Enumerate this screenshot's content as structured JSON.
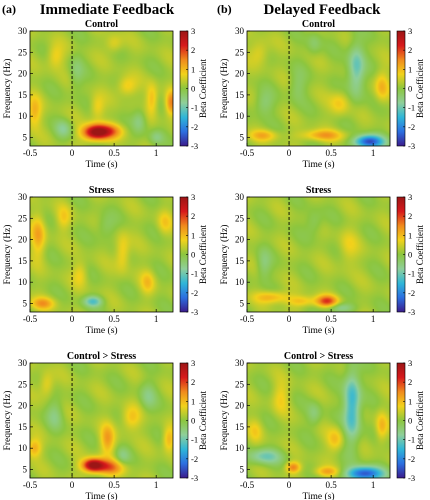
{
  "figure": {
    "panel_a_label": "(a)",
    "panel_b_label": "(b)",
    "column_a_title": "Immediate Feedback",
    "column_b_title": "Delayed Feedback"
  },
  "colorscale": {
    "label": "Beta Coefficient",
    "range": [
      -3,
      3
    ],
    "ticks": [
      "3",
      "2",
      "1",
      "0",
      "-1",
      "-2",
      "-3"
    ],
    "stops": [
      "#3b1c8c",
      "#2c6fe0",
      "#2fb6d8",
      "#8fcf9a",
      "#8cc63f",
      "#f2d21b",
      "#f08a1d",
      "#d7191c",
      "#9b1616"
    ]
  },
  "axes": {
    "xlabel": "Time (s)",
    "ylabel": "Frequency (Hz)",
    "xlim": [
      -0.5,
      1.2
    ],
    "ylim": [
      3,
      30
    ],
    "x_ticks": [
      -0.5,
      0,
      0.5,
      1
    ],
    "x_tick_labels": [
      "-0.5",
      "0",
      "0.5",
      "1"
    ],
    "y_ticks": [
      5,
      10,
      15,
      20,
      25,
      30
    ],
    "y_tick_labels": [
      "5",
      "10",
      "15",
      "20",
      "25",
      "30"
    ],
    "event_line_x": 0
  },
  "chart_data": [
    {
      "type": "heatmap",
      "panel": "a",
      "title": "Control",
      "xlabel": "Time (s)",
      "ylabel": "Frequency (Hz)",
      "xlim": [
        -0.5,
        1.2
      ],
      "ylim": [
        3,
        30
      ],
      "zlim": [
        -3,
        3
      ],
      "blobs": [
        {
          "x": 0.28,
          "y": 6.2,
          "sx": 0.11,
          "sy": 1.3,
          "v": 2.8
        },
        {
          "x": 0.45,
          "y": 6.5,
          "sx": 0.12,
          "sy": 1.2,
          "v": 1.2
        },
        {
          "x": 1.18,
          "y": 13,
          "sx": 0.05,
          "sy": 2.0,
          "v": 1.4
        },
        {
          "x": 0.95,
          "y": 14,
          "sx": 0.05,
          "sy": 2.5,
          "v": 0.9
        },
        {
          "x": -0.45,
          "y": 11,
          "sx": 0.06,
          "sy": 2.5,
          "v": 0.9
        },
        {
          "x": 0.65,
          "y": 17,
          "sx": 0.08,
          "sy": 1.6,
          "v": 0.8
        },
        {
          "x": 0.3,
          "y": 12,
          "sx": 0.06,
          "sy": 2.0,
          "v": 0.7
        },
        {
          "x": -0.2,
          "y": 24,
          "sx": 0.07,
          "sy": 2.0,
          "v": 0.7
        },
        {
          "x": 0.5,
          "y": 27,
          "sx": 0.07,
          "sy": 1.5,
          "v": 0.6
        },
        {
          "x": 0.8,
          "y": 9,
          "sx": 0.06,
          "sy": 2.0,
          "v": -0.7
        },
        {
          "x": -0.1,
          "y": 7,
          "sx": 0.07,
          "sy": 1.5,
          "v": -0.7
        },
        {
          "x": 0.05,
          "y": 20,
          "sx": 0.06,
          "sy": 3.0,
          "v": -0.5
        },
        {
          "x": 1.0,
          "y": 5,
          "sx": 0.06,
          "sy": 1.2,
          "v": -0.6
        }
      ]
    },
    {
      "type": "heatmap",
      "panel": "b",
      "title": "Control",
      "xlabel": "Time (s)",
      "ylabel": "Frequency (Hz)",
      "xlim": [
        -0.5,
        1.2
      ],
      "ylim": [
        3,
        30
      ],
      "zlim": [
        -3,
        3
      ],
      "blobs": [
        {
          "x": 0.95,
          "y": 4.0,
          "sx": 0.12,
          "sy": 1.1,
          "v": -2.8
        },
        {
          "x": 0.4,
          "y": 5.5,
          "sx": 0.18,
          "sy": 0.9,
          "v": 1.1
        },
        {
          "x": -0.3,
          "y": 5.5,
          "sx": 0.12,
          "sy": 0.9,
          "v": 0.9
        },
        {
          "x": 0.8,
          "y": 21,
          "sx": 0.07,
          "sy": 4.5,
          "v": -1.3
        },
        {
          "x": 1.1,
          "y": 17,
          "sx": 0.06,
          "sy": 2.5,
          "v": 0.9
        },
        {
          "x": 0.6,
          "y": 13,
          "sx": 0.08,
          "sy": 2.0,
          "v": 0.7
        },
        {
          "x": 0.1,
          "y": 17,
          "sx": 0.07,
          "sy": 2.5,
          "v": -0.5
        },
        {
          "x": -0.35,
          "y": 25,
          "sx": 0.08,
          "sy": 2.0,
          "v": 0.6
        },
        {
          "x": -0.3,
          "y": 13,
          "sx": 0.08,
          "sy": 2.0,
          "v": -0.6
        },
        {
          "x": 0.3,
          "y": 27,
          "sx": 0.06,
          "sy": 2.0,
          "v": -0.5
        }
      ]
    },
    {
      "type": "heatmap",
      "panel": "a",
      "title": "Stress",
      "xlabel": "Time (s)",
      "ylabel": "Frequency (Hz)",
      "xlim": [
        -0.5,
        1.2
      ],
      "ylim": [
        3,
        30
      ],
      "zlim": [
        -3,
        3
      ],
      "blobs": [
        {
          "x": 0.25,
          "y": 5.5,
          "sx": 0.08,
          "sy": 0.9,
          "v": -1.3
        },
        {
          "x": -0.35,
          "y": 5.0,
          "sx": 0.1,
          "sy": 1.0,
          "v": 1.1
        },
        {
          "x": -0.4,
          "y": 21,
          "sx": 0.06,
          "sy": 3.5,
          "v": 1.0
        },
        {
          "x": 0.6,
          "y": 17,
          "sx": 0.06,
          "sy": 3.0,
          "v": 0.8
        },
        {
          "x": 0.1,
          "y": 12,
          "sx": 0.06,
          "sy": 2.0,
          "v": 0.6
        },
        {
          "x": 0.9,
          "y": 10,
          "sx": 0.06,
          "sy": 2.0,
          "v": 0.7
        },
        {
          "x": 0.4,
          "y": 23,
          "sx": 0.08,
          "sy": 2.0,
          "v": -0.5
        },
        {
          "x": -0.1,
          "y": 25,
          "sx": 0.06,
          "sy": 2.0,
          "v": 0.6
        },
        {
          "x": 1.1,
          "y": 24,
          "sx": 0.06,
          "sy": 2.0,
          "v": 0.6
        }
      ]
    },
    {
      "type": "heatmap",
      "panel": "b",
      "title": "Stress",
      "xlabel": "Time (s)",
      "ylabel": "Frequency (Hz)",
      "xlim": [
        -0.5,
        1.2
      ],
      "ylim": [
        3,
        30
      ],
      "zlim": [
        -3,
        3
      ],
      "blobs": [
        {
          "x": 0.45,
          "y": 5.5,
          "sx": 0.09,
          "sy": 1.0,
          "v": 1.8
        },
        {
          "x": -0.2,
          "y": 6.5,
          "sx": 0.14,
          "sy": 1.0,
          "v": 1.0
        },
        {
          "x": 0.15,
          "y": 5.5,
          "sx": 0.12,
          "sy": 0.9,
          "v": 0.8
        },
        {
          "x": 0.6,
          "y": 4.0,
          "sx": 0.12,
          "sy": 0.8,
          "v": -0.9
        },
        {
          "x": -0.3,
          "y": 14,
          "sx": 0.06,
          "sy": 2.5,
          "v": -0.6
        },
        {
          "x": 0.7,
          "y": 18,
          "sx": 0.08,
          "sy": 3.0,
          "v": 0.5
        },
        {
          "x": 0.3,
          "y": 24,
          "sx": 0.07,
          "sy": 2.0,
          "v": -0.5
        }
      ]
    },
    {
      "type": "heatmap",
      "panel": "a",
      "title": "Control > Stress",
      "xlabel": "Time (s)",
      "ylabel": "Frequency (Hz)",
      "xlim": [
        -0.5,
        1.2
      ],
      "ylim": [
        3,
        30
      ],
      "zlim": [
        -3,
        3
      ],
      "blobs": [
        {
          "x": 0.25,
          "y": 6.0,
          "sx": 0.09,
          "sy": 1.1,
          "v": 3.0
        },
        {
          "x": 0.45,
          "y": 5.5,
          "sx": 0.12,
          "sy": 1.3,
          "v": 1.4
        },
        {
          "x": 0.42,
          "y": 12,
          "sx": 0.06,
          "sy": 2.5,
          "v": 1.1
        },
        {
          "x": -0.45,
          "y": 10,
          "sx": 0.06,
          "sy": 1.5,
          "v": 1.0
        },
        {
          "x": 1.15,
          "y": 12,
          "sx": 0.05,
          "sy": 2.0,
          "v": 1.0
        },
        {
          "x": 0.7,
          "y": 17,
          "sx": 0.08,
          "sy": 2.0,
          "v": 0.8
        },
        {
          "x": -0.2,
          "y": 18,
          "sx": 0.07,
          "sy": 2.5,
          "v": -0.6
        },
        {
          "x": 0.6,
          "y": 8,
          "sx": 0.06,
          "sy": 1.5,
          "v": -0.6
        },
        {
          "x": 0.9,
          "y": 22,
          "sx": 0.07,
          "sy": 2.5,
          "v": -0.6
        },
        {
          "x": -0.3,
          "y": 25,
          "sx": 0.06,
          "sy": 2.0,
          "v": 0.7
        }
      ]
    },
    {
      "type": "heatmap",
      "panel": "b",
      "title": "Control > Stress",
      "xlabel": "Time (s)",
      "ylabel": "Frequency (Hz)",
      "xlim": [
        -0.5,
        1.2
      ],
      "ylim": [
        3,
        30
      ],
      "zlim": [
        -3,
        3
      ],
      "blobs": [
        {
          "x": 0.9,
          "y": 4.0,
          "sx": 0.15,
          "sy": 1.2,
          "v": -2.7
        },
        {
          "x": 0.75,
          "y": 20,
          "sx": 0.07,
          "sy": 6.0,
          "v": -1.7
        },
        {
          "x": 0.05,
          "y": 5.5,
          "sx": 0.06,
          "sy": 0.9,
          "v": 1.4
        },
        {
          "x": 0.45,
          "y": 4.5,
          "sx": 0.1,
          "sy": 0.8,
          "v": 1.0
        },
        {
          "x": -0.3,
          "y": 8.0,
          "sx": 0.15,
          "sy": 1.3,
          "v": -1.1
        },
        {
          "x": 0.55,
          "y": 12,
          "sx": 0.07,
          "sy": 2.0,
          "v": 0.8
        },
        {
          "x": 1.1,
          "y": 15,
          "sx": 0.05,
          "sy": 2.5,
          "v": 0.9
        },
        {
          "x": -0.1,
          "y": 22,
          "sx": 0.07,
          "sy": 2.5,
          "v": 0.6
        },
        {
          "x": 0.3,
          "y": 18,
          "sx": 0.06,
          "sy": 2.0,
          "v": -0.6
        },
        {
          "x": -0.4,
          "y": 14,
          "sx": 0.06,
          "sy": 2.0,
          "v": 0.5
        }
      ]
    }
  ]
}
